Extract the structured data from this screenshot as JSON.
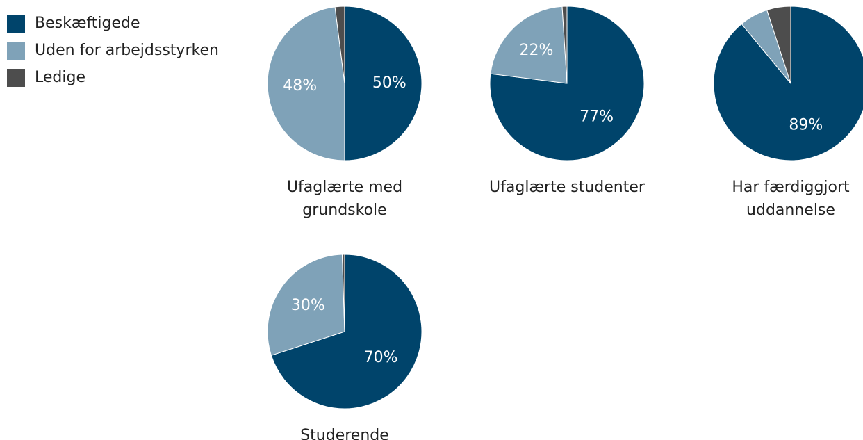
{
  "chart_data": [
    {
      "type": "pie",
      "title": [
        "Ufaglærte med",
        "grundskole"
      ],
      "categories": [
        "Beskæftigede",
        "Uden for arbejdsstyrken",
        "Ledige"
      ],
      "colors": [
        "#00446b",
        "#7fa2b8",
        "#4d4d4d"
      ],
      "values": [
        50,
        48,
        2
      ],
      "value_labels": [
        "50%",
        "48%",
        null
      ]
    },
    {
      "type": "pie",
      "title": [
        "Ufaglærte studenter"
      ],
      "colors": [
        "#00446b",
        "#7fa2b8",
        "#4d4d4d"
      ],
      "values": [
        77,
        22,
        1
      ],
      "value_labels": [
        "77%",
        "22%",
        null
      ]
    },
    {
      "type": "pie",
      "title": [
        "Har færdiggjort",
        "uddannelse"
      ],
      "colors": [
        "#00446b",
        "#7fa2b8",
        "#4d4d4d"
      ],
      "values": [
        89,
        6,
        5
      ],
      "value_labels": [
        "89%",
        null,
        null
      ]
    },
    {
      "type": "pie",
      "title": [
        "Studerende"
      ],
      "colors": [
        "#00446b",
        "#7fa2b8",
        "#4d4d4d"
      ],
      "values": [
        70,
        29.5,
        0.5
      ],
      "value_labels": [
        "70%",
        "30%",
        null
      ]
    }
  ]
}
